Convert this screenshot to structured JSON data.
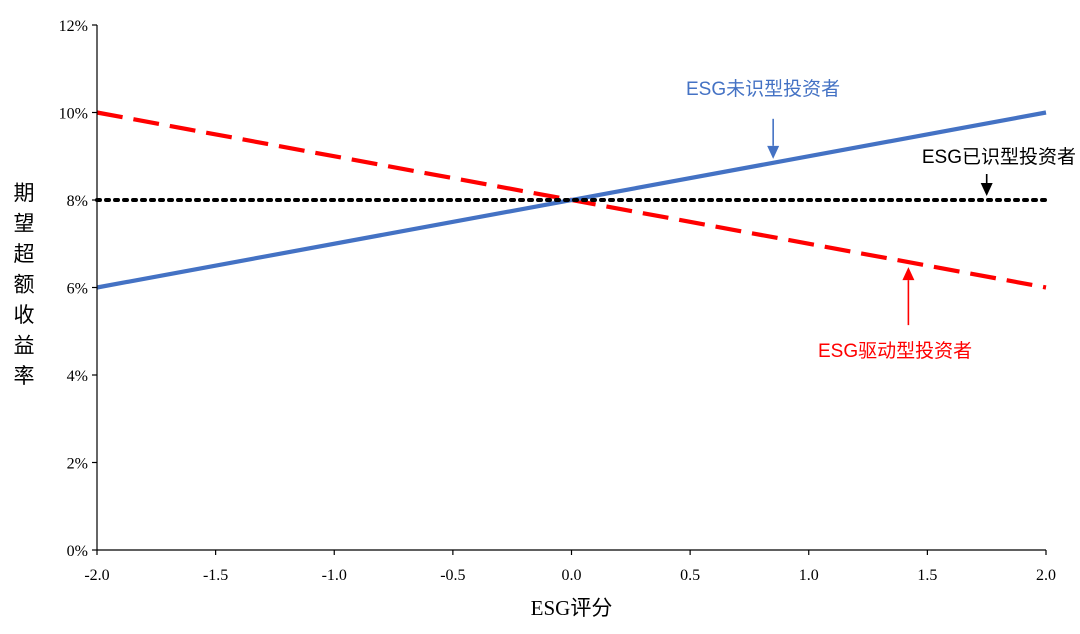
{
  "chart_data": {
    "type": "line",
    "xlabel": "ESG评分",
    "ylabel": "期望超额收益率",
    "xlim": [
      -2.0,
      2.0
    ],
    "ylim": [
      0,
      12
    ],
    "x_ticks": [
      -2.0,
      -1.5,
      -1.0,
      -0.5,
      0.0,
      0.5,
      1.0,
      1.5,
      2.0
    ],
    "x_tick_labels": [
      "-2.0",
      "-1.5",
      "-1.0",
      "-0.5",
      "0.0",
      "0.5",
      "1.0",
      "1.5",
      "2.0"
    ],
    "y_ticks": [
      0,
      2,
      4,
      6,
      8,
      10,
      12
    ],
    "y_tick_labels": [
      "0%",
      "2%",
      "4%",
      "6%",
      "8%",
      "10%",
      "12%"
    ],
    "grid": false,
    "series": [
      {
        "name": "ESG未识型投资者",
        "x": [
          -2.0,
          2.0
        ],
        "y": [
          6,
          10
        ],
        "color": "#4472C4",
        "style": "solid"
      },
      {
        "name": "ESG已识型投资者",
        "x": [
          -2.0,
          2.0
        ],
        "y": [
          8,
          8
        ],
        "color": "#000000",
        "style": "dotted"
      },
      {
        "name": "ESG驱动型投资者",
        "x": [
          -2.0,
          2.0
        ],
        "y": [
          10,
          6
        ],
        "color": "#FF0000",
        "style": "dashed"
      }
    ],
    "annotations": [
      {
        "text": "ESG未识型投资者",
        "series": 0,
        "arrow_x": 0.85,
        "color": "#4472C4"
      },
      {
        "text": "ESG已识型投资者",
        "series": 1,
        "arrow_x": 1.75,
        "color": "#000000"
      },
      {
        "text": "ESG驱动型投资者",
        "series": 2,
        "arrow_x": 1.42,
        "color": "#FF0000"
      }
    ]
  }
}
